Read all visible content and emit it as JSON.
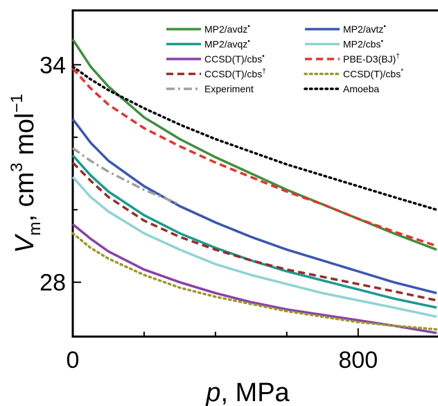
{
  "chart_data": {
    "type": "line",
    "xlabel": {
      "var": "p",
      "unit": ", MPa"
    },
    "ylabel": {
      "var": "V",
      "sub": "m",
      "unit": ", cm",
      "sup1": "3",
      "unit2": " mol",
      "sup2": "−1"
    },
    "xlim": [
      0,
      1020
    ],
    "ylim": [
      26.5,
      35.5
    ],
    "xticks": [
      0,
      800
    ],
    "yticks": [
      28,
      34
    ],
    "legend_position": "top-right",
    "grid": false,
    "series": [
      {
        "name": "MP2/avdz",
        "sup": "•",
        "color": "#3f8f3a",
        "dash": "solid",
        "x": [
          0,
          50,
          100,
          200,
          300,
          400,
          500,
          600,
          700,
          800,
          900,
          1020
        ],
        "y": [
          34.7,
          33.95,
          33.4,
          32.55,
          31.95,
          31.45,
          31.0,
          30.55,
          30.15,
          29.75,
          29.35,
          28.9
        ]
      },
      {
        "name": "MP2/avtz",
        "sup": "•",
        "color": "#3a55b4",
        "dash": "solid",
        "x": [
          0,
          50,
          100,
          200,
          300,
          400,
          500,
          600,
          700,
          800,
          900,
          1020
        ],
        "y": [
          32.5,
          31.85,
          31.35,
          30.65,
          30.1,
          29.65,
          29.25,
          28.9,
          28.6,
          28.3,
          28.0,
          27.7
        ]
      },
      {
        "name": "MP2/avqz",
        "sup": "•",
        "color": "#1a9a8e",
        "dash": "solid",
        "x": [
          0,
          50,
          100,
          200,
          300,
          400,
          500,
          600,
          700,
          800,
          900,
          1020
        ],
        "y": [
          31.5,
          30.95,
          30.5,
          29.85,
          29.35,
          28.95,
          28.6,
          28.3,
          28.05,
          27.8,
          27.55,
          27.3
        ]
      },
      {
        "name": "MP2/cbs",
        "sup": "•",
        "color": "#8fd3d3",
        "dash": "solid",
        "x": [
          0,
          50,
          100,
          200,
          300,
          400,
          500,
          600,
          700,
          800,
          900,
          1020
        ],
        "y": [
          30.9,
          30.35,
          29.95,
          29.35,
          28.9,
          28.5,
          28.2,
          27.95,
          27.7,
          27.5,
          27.3,
          27.05
        ]
      },
      {
        "name": "CCSD(T)/cbs",
        "sup": "•",
        "color": "#8b3fa8",
        "dash": "solid",
        "x": [
          0,
          50,
          100,
          200,
          300,
          400,
          500,
          600,
          700,
          800,
          900,
          1020
        ],
        "y": [
          29.6,
          29.2,
          28.85,
          28.35,
          28.0,
          27.7,
          27.45,
          27.25,
          27.1,
          26.95,
          26.8,
          26.6
        ]
      },
      {
        "name": "PBE-D3(BJ)",
        "sup": "†",
        "color": "#e8322e",
        "dash": "dash",
        "x": [
          0,
          50,
          100,
          200,
          300,
          400,
          500,
          600,
          700,
          800,
          900,
          1020
        ],
        "y": [
          33.9,
          33.35,
          32.9,
          32.25,
          31.75,
          31.3,
          30.9,
          30.5,
          30.15,
          29.75,
          29.4,
          29.0
        ]
      },
      {
        "name": "CCSD(T)/cbs",
        "sup": "†",
        "color": "#9b2a2a",
        "dash": "dash",
        "x": [
          0,
          50,
          100,
          200,
          300,
          400,
          500,
          600,
          700,
          800,
          900,
          1020
        ],
        "y": [
          31.3,
          30.8,
          30.35,
          29.7,
          29.25,
          28.9,
          28.6,
          28.35,
          28.15,
          27.95,
          27.75,
          27.5
        ]
      },
      {
        "name": "CCSD(T)/cbs",
        "sup": "*",
        "color": "#9a9a2a",
        "dash": "dot",
        "x": [
          0,
          50,
          100,
          200,
          300,
          400,
          500,
          600,
          700,
          800,
          900,
          1020
        ],
        "y": [
          29.35,
          28.95,
          28.65,
          28.2,
          27.85,
          27.6,
          27.4,
          27.2,
          27.05,
          26.9,
          26.8,
          26.7
        ]
      },
      {
        "name": "Experiment",
        "sup": "",
        "color": "#a0a0a0",
        "dash": "dashdot",
        "x": [
          0,
          50,
          100,
          150,
          200,
          250,
          300
        ],
        "y": [
          31.7,
          31.35,
          31.05,
          30.8,
          30.55,
          30.35,
          30.15
        ]
      },
      {
        "name": "Amoeba",
        "sup": "",
        "color": "#000000",
        "dash": "dot",
        "x": [
          0,
          50,
          100,
          200,
          300,
          400,
          500,
          600,
          700,
          800,
          900,
          1020
        ],
        "y": [
          33.95,
          33.6,
          33.3,
          32.8,
          32.35,
          31.95,
          31.6,
          31.25,
          30.95,
          30.65,
          30.35,
          30.0
        ]
      }
    ]
  }
}
